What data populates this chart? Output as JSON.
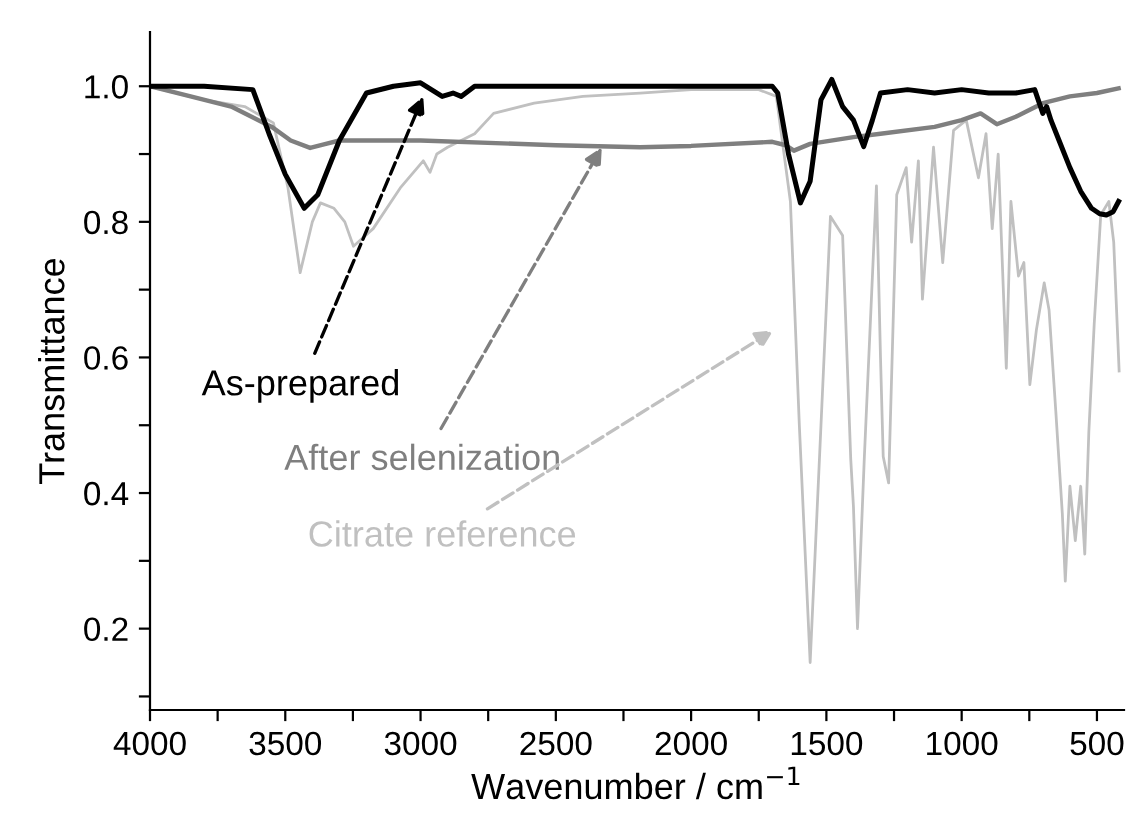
{
  "chart_data": {
    "type": "line",
    "xlabel": "Wavenumber / cm$^{−1}$",
    "ylabel": "Transmittance",
    "xlim": [
      4000,
      400
    ],
    "ylim": [
      0.08,
      1.08
    ],
    "xticks": [
      4000,
      {
        "value": 3750,
        "label": null
      },
      3500,
      {
        "value": 3250,
        "label": null
      },
      3000,
      {
        "value": 2750,
        "label": null
      },
      2500,
      {
        "value": 2250,
        "label": null
      },
      2000,
      {
        "value": 1750,
        "label": null
      },
      1500,
      {
        "value": 1250,
        "label": null
      },
      1000,
      {
        "value": 750,
        "label": null
      },
      500
    ],
    "yticks": [
      {
        "value": 0.1,
        "label": null
      },
      0.2,
      {
        "value": 0.3,
        "label": null
      },
      0.4,
      {
        "value": 0.5,
        "label": null
      },
      0.6,
      {
        "value": 0.7,
        "label": null
      },
      0.8,
      {
        "value": 0.9,
        "label": null
      },
      {
        "value": 1.0,
        "label": "1.0"
      }
    ],
    "grid": false,
    "legend": false,
    "marker": "none",
    "line_style": "solid",
    "series": [
      {
        "color": "#000000",
        "x": [
          4000,
          3800,
          3620,
          3560,
          3500,
          3430,
          3380,
          3300,
          3200,
          3100,
          3000,
          2960,
          2920,
          2880,
          2850,
          2800,
          2500,
          2000,
          1700,
          1680,
          1640,
          1596,
          1560,
          1520,
          1480,
          1440,
          1400,
          1362,
          1330,
          1300,
          1200,
          1100,
          1000,
          900,
          800,
          730,
          700,
          686,
          670,
          640,
          600,
          560,
          520,
          490,
          465,
          440,
          420
        ],
        "values": [
          1.0,
          1.0,
          0.995,
          0.93,
          0.87,
          0.82,
          0.84,
          0.92,
          0.99,
          1.0,
          1.005,
          0.995,
          0.985,
          0.99,
          0.985,
          1.0,
          1.0,
          1.0,
          1.0,
          0.99,
          0.9,
          0.828,
          0.86,
          0.98,
          1.01,
          0.97,
          0.95,
          0.911,
          0.95,
          0.99,
          0.995,
          0.99,
          0.995,
          0.99,
          0.99,
          0.995,
          0.96,
          0.97,
          0.95,
          0.92,
          0.88,
          0.845,
          0.82,
          0.812,
          0.81,
          0.815,
          0.83
        ]
      },
      {
        "color": "#7f7f7f",
        "x": [
          4000,
          3850,
          3700,
          3550,
          3480,
          3408,
          3350,
          3300,
          3000,
          2500,
          2188,
          2000,
          1700,
          1650,
          1620,
          1560,
          1400,
          1300,
          1100,
          1000,
          930,
          870,
          800,
          750,
          700,
          600,
          500,
          420
        ],
        "values": [
          1.0,
          0.985,
          0.97,
          0.94,
          0.92,
          0.909,
          0.915,
          0.92,
          0.92,
          0.913,
          0.91,
          0.912,
          0.918,
          0.913,
          0.905,
          0.915,
          0.925,
          0.93,
          0.94,
          0.95,
          0.96,
          0.944,
          0.955,
          0.965,
          0.975,
          0.985,
          0.99,
          0.997
        ]
      },
      {
        "color": "#c0c0c0",
        "x": [
          4000,
          3800,
          3650,
          3544,
          3490,
          3445,
          3400,
          3370,
          3320,
          3280,
          3248,
          3175,
          3075,
          2990,
          2965,
          2940,
          2900,
          2800,
          2730,
          2580,
          2400,
          2188,
          2000,
          1750,
          1685,
          1633,
          1600,
          1560,
          1520,
          1485,
          1440,
          1410,
          1400,
          1385,
          1360,
          1315,
          1300,
          1290,
          1270,
          1240,
          1205,
          1185,
          1160,
          1145,
          1104,
          1070,
          1030,
          983,
          938,
          910,
          887,
          865,
          835,
          818,
          790,
          770,
          748,
          724,
          695,
          677,
          652,
          628,
          617,
          600,
          580,
          560,
          545,
          530,
          510,
          486,
          456,
          438,
          418
        ],
        "values": [
          1.0,
          0.98,
          0.97,
          0.946,
          0.85,
          0.725,
          0.8,
          0.828,
          0.82,
          0.8,
          0.764,
          0.79,
          0.85,
          0.89,
          0.873,
          0.9,
          0.91,
          0.93,
          0.96,
          0.975,
          0.985,
          0.99,
          0.995,
          0.995,
          0.985,
          0.83,
          0.5,
          0.15,
          0.5,
          0.808,
          0.78,
          0.45,
          0.38,
          0.2,
          0.45,
          0.853,
          0.6,
          0.454,
          0.415,
          0.84,
          0.88,
          0.77,
          0.89,
          0.686,
          0.91,
          0.74,
          0.935,
          0.95,
          0.865,
          0.93,
          0.79,
          0.9,
          0.584,
          0.83,
          0.72,
          0.74,
          0.56,
          0.64,
          0.71,
          0.67,
          0.52,
          0.37,
          0.27,
          0.41,
          0.33,
          0.41,
          0.31,
          0.49,
          0.65,
          0.81,
          0.83,
          0.77,
          0.58
        ]
      }
    ],
    "annotations": [
      {
        "text": "As-prepared",
        "x": 2990,
        "y": 0.985
      },
      {
        "text": "After selenization",
        "x": 2330,
        "y": 0.91
      },
      "Citrate reference"
    ]
  }
}
